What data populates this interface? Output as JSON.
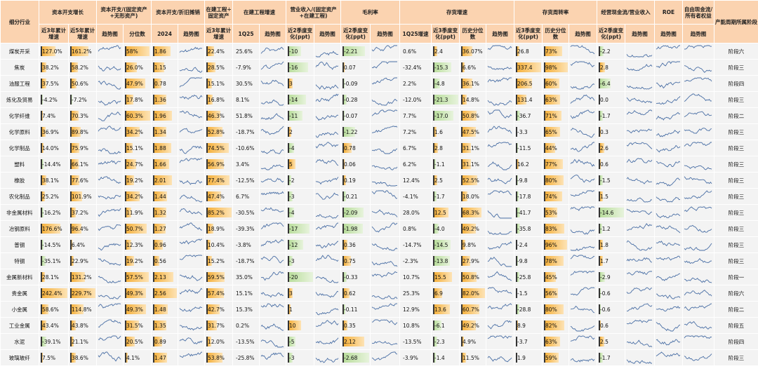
{
  "table": {
    "groups": [
      {
        "label": "细分行业",
        "subs": []
      },
      {
        "label": "资本开支增长",
        "subs": [
          "近3年累计增速",
          "近5年累计增速"
        ]
      },
      {
        "label": "资本开支/(固定资产+无形资产)",
        "subs": [
          "趋势图",
          "分位数"
        ]
      },
      {
        "label": "资本开支/折旧摊销",
        "subs": [
          "2024",
          "趋势图"
        ]
      },
      {
        "label": "在建工程÷固定资产",
        "subs": [
          "近3年累计增速"
        ]
      },
      {
        "label": "在建工程增速",
        "subs": [
          "1Q25",
          "趋势图"
        ]
      },
      {
        "label": "营业收入/(固定资产+在建工程)",
        "subs": [
          "近2季度变化(ppt)",
          "趋势图"
        ]
      },
      {
        "label": "毛利率",
        "subs": [
          "近2季度变化(ppt)",
          "趋势图"
        ]
      },
      {
        "label": "存货增速",
        "subs": [
          "1Q25增速",
          "近3季度变化(ppt)",
          "历史分位数",
          "趋势图"
        ]
      },
      {
        "label": "存货周转率",
        "subs": [
          "近3季度变化(ppt)",
          "历史分位数",
          "趋势图"
        ]
      },
      {
        "label": "经营现金流/营业收入",
        "subs": [
          "近2季度变化(ppt)",
          "趋势图"
        ]
      },
      {
        "label": "ROE",
        "subs": [
          "趋势图"
        ]
      },
      {
        "label": "自由现金流/所有者权益",
        "subs": [
          "趋势图"
        ]
      },
      {
        "label": "产能周期所属阶段",
        "subs": []
      }
    ],
    "rows": [
      [
        "煤炭开采",
        "127.0%",
        "161.2%",
        "58%",
        "1.86",
        "22.4%",
        "25.6%",
        "-10",
        "-2.21",
        "0.6%",
        "2.4",
        "36.07%",
        "26.8",
        "73%",
        "-2.2",
        "阶段六"
      ],
      [
        "焦炭",
        "38.2%",
        "58.2%",
        "26.0%",
        "1.15",
        "28.5%",
        "-7.9%",
        "-16",
        "0.07",
        "-32.4%",
        "-15.3",
        "6.6%",
        "337.4",
        "98%",
        "2.8",
        "阶段三"
      ],
      [
        "油服工程",
        "37.5%",
        "50.6%",
        "47.9%",
        "0.78",
        "15.1%",
        "30.5%",
        "3",
        "-0.09",
        "2.2%",
        "-4.8",
        "36.1%",
        "206.5",
        "60%",
        "-6.4",
        "阶段四"
      ],
      [
        "炼化及贸易",
        "-4.2%",
        "-7.2%",
        "17.8%",
        "1.36",
        "16.8%",
        "8.1%",
        "-14",
        "-0.28",
        "-12.0%",
        "-21.3",
        "14.8%",
        "131.4",
        "63%",
        "0.0",
        "阶段三"
      ],
      [
        "化学纤维",
        "7.4%",
        "70.3%",
        "60.3%",
        "1.96",
        "46.3%",
        "51.8%",
        "-11",
        "-0.07",
        "7.7%",
        "-17.0",
        "50.8%",
        "-36.7",
        "71%",
        "-1.7",
        "阶段二"
      ],
      [
        "化学原料",
        "36.9%",
        "89.8%",
        "34.2%",
        "1.34",
        "52.8%",
        "-18.7%",
        "2",
        "-1.22",
        "7.2%",
        "1.6",
        "47.5%",
        "-3.3",
        "65%",
        "0.3",
        "阶段三"
      ],
      [
        "化学制品",
        "14.0%",
        "75.9%",
        "15.1%",
        "1.88",
        "74.5%",
        "-10.6%",
        "-4",
        "0.78",
        "6.7%",
        "2.8",
        "31.1%",
        "-11.5",
        "44%",
        "2.6",
        "阶段三"
      ],
      [
        "塑料",
        "-14.4%",
        "66.1%",
        "24.7%",
        "1.66",
        "56.9%",
        "3.4%",
        "5",
        "0.06",
        "6.2%",
        "-1.1",
        "31.1%",
        "16.2",
        "77%",
        "0.6",
        "阶段三"
      ],
      [
        "橡胶",
        "38.1%",
        "77.6%",
        "19.2%",
        "2.01",
        "77.4%",
        "-12.5%",
        "-2",
        "0.19",
        "12.4%",
        "2.5",
        "52.5%",
        "-9.8",
        "80%",
        "-1.5",
        "阶段三"
      ],
      [
        "农化制品",
        "25.2%",
        "101.9%",
        "34.2%",
        "1.44",
        "47.4%",
        "6.7%",
        "-3",
        "-0.21",
        "-4.1%",
        "-1.7",
        "18.0%",
        "-17.8",
        "74%",
        "1.5",
        "阶段三"
      ],
      [
        "非金属材料",
        "-16.2%",
        "37.2%",
        "11.9%",
        "1.32",
        "85.2%",
        "-30.5%",
        "-4",
        "-2.09",
        "28.0%",
        "12.5",
        "68.3%",
        "-41.7",
        "53%",
        "-14.6",
        "阶段三"
      ],
      [
        "冶钢原料",
        "176.6%",
        "96.4%",
        "50.7%",
        "1.27",
        "18.9%",
        "-39.3%",
        "-17",
        "-1.98",
        "0.8%",
        "-4.0",
        "49.2%",
        "-35.8",
        "83%",
        "-1.2",
        "阶段三"
      ],
      [
        "普钢",
        "-14.5%",
        "6.4%",
        "12.3%",
        "0.96",
        "10.4%",
        "-3.8%",
        "-12",
        "0.36",
        "-14.7%",
        "-14.5",
        "9.8%",
        "-2.4",
        "96%",
        "1.8",
        "阶段三"
      ],
      [
        "特钢",
        "-35.1%",
        "22.9%",
        "19.2%",
        "0.56",
        "15.2%",
        "-18.7%",
        "-3",
        "0.75",
        "-2.3%",
        "-13.8",
        "27.9%",
        "-9.8",
        "78%",
        "1.7",
        "阶段三"
      ],
      [
        "金属新材料",
        "28.1%",
        "131.2%",
        "57.5%",
        "2.13",
        "59.5%",
        "35.0%",
        "-20",
        "-0.33",
        "10.7%",
        "15.5",
        "50.8%",
        "-25.8",
        "45%",
        "-2.9",
        "阶段一"
      ],
      [
        "贵金属",
        "242.4%",
        "229.7%",
        "49.3%",
        "2.56",
        "57.4%",
        "15.1%",
        "3",
        "0.62",
        "25.3%",
        "6.9",
        "82.0%",
        "-1.5",
        "56%",
        "-0.6",
        "阶段六"
      ],
      [
        "小金属",
        "58.6%",
        "114.8%",
        "49.3%",
        "1.48",
        "42.7%",
        "15.3%",
        "1",
        "-0.11",
        "12.9%",
        "13.6",
        "60.7%",
        "-28.8",
        "80%",
        "-0.6",
        "阶段二"
      ],
      [
        "工业金属",
        "43.4%",
        "43.8%",
        "31.5%",
        "1.35",
        "31.7%",
        "0.2%",
        "10",
        "0.35",
        "10.8%",
        "-6.1",
        "49.2%",
        "8.9",
        "82%",
        "0.6",
        "阶段五"
      ],
      [
        "水泥",
        "-39.1%",
        "21.1%",
        "20.5%",
        "0.89",
        "12.0%",
        "-13.5%",
        "-5",
        "2.12",
        "-13.5%",
        "-2.3",
        "4.9%",
        "-3.7",
        "63%",
        "2.5",
        "阶段四"
      ],
      [
        "玻璃玻纤",
        "7.5%",
        "38.6%",
        "4.1%",
        "1.47",
        "53.8%",
        "-25.8%",
        "-3",
        "-2.68",
        "-3.9%",
        "-1.4",
        "11.5%",
        "1.9",
        "59%",
        "-1.7",
        "阶段三"
      ]
    ]
  }
}
